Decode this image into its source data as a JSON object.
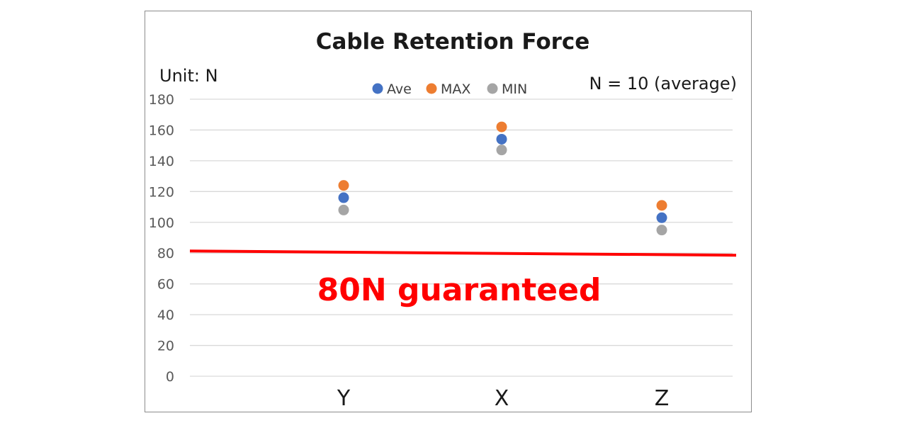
{
  "chart_data": {
    "type": "scatter",
    "title": "Cable Retention Force",
    "unit_label": "Unit: N",
    "note": "N = 10 (average)",
    "categories": [
      "Y",
      "X",
      "Z"
    ],
    "series": [
      {
        "name": "Ave",
        "color": "#4472c4",
        "values": [
          116,
          154,
          103
        ]
      },
      {
        "name": "MAX",
        "color": "#ed7d31",
        "values": [
          124,
          162,
          111
        ]
      },
      {
        "name": "MIN",
        "color": "#a5a5a5",
        "values": [
          108,
          147,
          95
        ]
      }
    ],
    "yticks": [
      "0",
      "20",
      "40",
      "60",
      "80",
      "100",
      "120",
      "140",
      "160",
      "180"
    ],
    "ylim": [
      0,
      180
    ],
    "grid": true,
    "legend_position": "top",
    "reference_line": {
      "value": 80,
      "color": "#ff0000"
    },
    "annotation": "80N guaranteed",
    "xlabel": "",
    "ylabel": ""
  }
}
